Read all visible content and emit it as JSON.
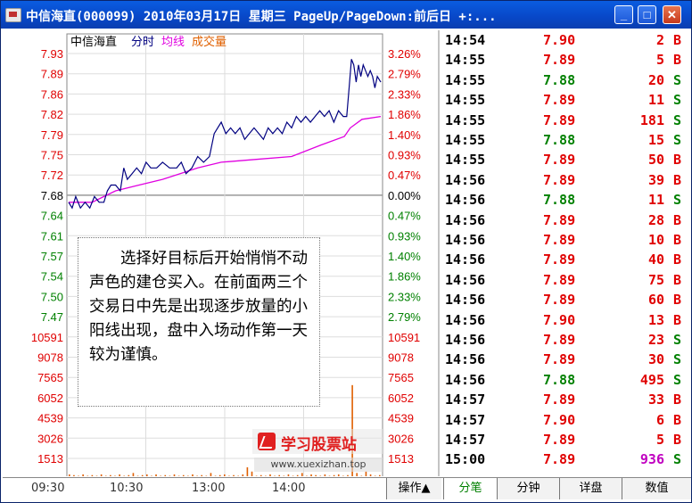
{
  "window": {
    "title": "中信海直(000099) 2010年03月17日 星期三 PageUp/PageDown:前后日 +:..."
  },
  "chart_data": {
    "type": "line",
    "stock_label": "中信海直",
    "legend": [
      "分时",
      "均线",
      "成交量"
    ],
    "legend_colors": [
      "#000080",
      "#e000e0",
      "#e06000"
    ],
    "price_ticks": [
      "7.93",
      "7.89",
      "7.86",
      "7.82",
      "7.79",
      "7.75",
      "7.72",
      "7.68",
      "7.64",
      "7.61",
      "7.57",
      "7.54",
      "7.50",
      "7.47"
    ],
    "pct_ticks": [
      "3.26%",
      "2.79%",
      "2.33%",
      "1.86%",
      "1.40%",
      "0.93%",
      "0.47%",
      "0.00%",
      "0.47%",
      "0.93%",
      "1.40%",
      "1.86%",
      "2.33%",
      "2.79%"
    ],
    "volume_ticks": [
      "10591",
      "9078",
      "7565",
      "6052",
      "4539",
      "3026",
      "1513"
    ],
    "time_ticks": [
      "09:30",
      "10:30",
      "13:00",
      "14:00"
    ],
    "ylim": [
      7.45,
      7.93
    ],
    "prev_close": 7.68,
    "price_series": [
      [
        0,
        7.67
      ],
      [
        3,
        7.66
      ],
      [
        6,
        7.68
      ],
      [
        10,
        7.66
      ],
      [
        14,
        7.67
      ],
      [
        18,
        7.66
      ],
      [
        22,
        7.68
      ],
      [
        26,
        7.67
      ],
      [
        30,
        7.67
      ],
      [
        33,
        7.69
      ],
      [
        36,
        7.7
      ],
      [
        40,
        7.7
      ],
      [
        44,
        7.69
      ],
      [
        47,
        7.73
      ],
      [
        50,
        7.71
      ],
      [
        54,
        7.72
      ],
      [
        58,
        7.73
      ],
      [
        62,
        7.72
      ],
      [
        66,
        7.74
      ],
      [
        70,
        7.73
      ],
      [
        75,
        7.73
      ],
      [
        80,
        7.74
      ],
      [
        86,
        7.73
      ],
      [
        92,
        7.73
      ],
      [
        96,
        7.74
      ],
      [
        100,
        7.72
      ],
      [
        105,
        7.73
      ],
      [
        110,
        7.75
      ],
      [
        115,
        7.74
      ],
      [
        120,
        7.75
      ],
      [
        124,
        7.79
      ],
      [
        127,
        7.8
      ],
      [
        130,
        7.81
      ],
      [
        134,
        7.79
      ],
      [
        138,
        7.8
      ],
      [
        142,
        7.79
      ],
      [
        146,
        7.8
      ],
      [
        150,
        7.78
      ],
      [
        154,
        7.79
      ],
      [
        158,
        7.8
      ],
      [
        162,
        7.79
      ],
      [
        166,
        7.78
      ],
      [
        170,
        7.8
      ],
      [
        174,
        7.79
      ],
      [
        178,
        7.8
      ],
      [
        182,
        7.79
      ],
      [
        186,
        7.81
      ],
      [
        190,
        7.8
      ],
      [
        194,
        7.82
      ],
      [
        198,
        7.81
      ],
      [
        202,
        7.82
      ],
      [
        206,
        7.81
      ],
      [
        210,
        7.82
      ],
      [
        214,
        7.83
      ],
      [
        218,
        7.82
      ],
      [
        222,
        7.83
      ],
      [
        226,
        7.81
      ],
      [
        230,
        7.83
      ],
      [
        234,
        7.82
      ],
      [
        237,
        7.82
      ],
      [
        239,
        7.87
      ],
      [
        241,
        7.92
      ],
      [
        243,
        7.91
      ],
      [
        245,
        7.88
      ],
      [
        247,
        7.91
      ],
      [
        249,
        7.89
      ],
      [
        251,
        7.91
      ],
      [
        253,
        7.9
      ],
      [
        255,
        7.89
      ],
      [
        257,
        7.9
      ],
      [
        259,
        7.89
      ],
      [
        261,
        7.87
      ],
      [
        263,
        7.89
      ],
      [
        266,
        7.88
      ]
    ],
    "avg_series": [
      [
        0,
        7.67
      ],
      [
        20,
        7.67
      ],
      [
        40,
        7.69
      ],
      [
        60,
        7.7
      ],
      [
        80,
        7.71
      ],
      [
        95,
        7.72
      ],
      [
        110,
        7.73
      ],
      [
        130,
        7.74
      ],
      [
        160,
        7.745
      ],
      [
        190,
        7.75
      ],
      [
        215,
        7.77
      ],
      [
        235,
        7.785
      ],
      [
        240,
        7.8
      ],
      [
        250,
        7.815
      ],
      [
        266,
        7.82
      ]
    ],
    "volume_series": [
      0.03,
      0.025,
      0.02,
      0.03,
      0.02,
      0.025,
      0.02,
      0.03,
      0.02,
      0.025,
      0.02,
      0.03,
      0.02,
      0.025,
      0.04,
      0.02,
      0.025,
      0.03,
      0.02,
      0.03,
      0.02,
      0.025,
      0.02,
      0.03,
      0.02,
      0.025,
      0.02,
      0.03,
      0.02,
      0.025,
      0.02,
      0.04,
      0.02,
      0.025,
      0.03,
      0.02,
      0.025,
      0.02,
      0.03,
      0.08,
      0.05,
      0.02,
      0.025,
      0.02,
      0.03,
      0.02,
      0.025,
      0.02,
      0.03,
      0.02,
      0.025,
      0.04,
      0.02,
      0.03,
      0.025,
      0.02,
      0.03,
      0.02,
      0.025,
      0.03,
      0.02,
      0.025,
      0.66,
      0.04,
      0.02,
      0.05,
      0.03,
      0.02,
      0.025
    ]
  },
  "annotation": {
    "text": "选择好目标后开始悄悄不动声色的建仓买入。在前面两三个交易日中先是出现逐步放量的小阳线出现，盘中入场动作第一天较为谨慎。"
  },
  "watermark": {
    "title": "学习股票站",
    "url": "www.xuexizhan.top"
  },
  "ticker": {
    "rows": [
      {
        "time": "14:54",
        "price": "7.90",
        "vol": "2",
        "bs": "B"
      },
      {
        "time": "14:55",
        "price": "7.89",
        "vol": "5",
        "bs": "B"
      },
      {
        "time": "14:55",
        "price": "7.88",
        "vol": "20",
        "bs": "S"
      },
      {
        "time": "14:55",
        "price": "7.89",
        "vol": "11",
        "bs": "S"
      },
      {
        "time": "14:55",
        "price": "7.89",
        "vol": "181",
        "bs": "S"
      },
      {
        "time": "14:55",
        "price": "7.88",
        "vol": "15",
        "bs": "S"
      },
      {
        "time": "14:55",
        "price": "7.89",
        "vol": "50",
        "bs": "B"
      },
      {
        "time": "14:56",
        "price": "7.89",
        "vol": "39",
        "bs": "B"
      },
      {
        "time": "14:56",
        "price": "7.88",
        "vol": "11",
        "bs": "S"
      },
      {
        "time": "14:56",
        "price": "7.89",
        "vol": "28",
        "bs": "B"
      },
      {
        "time": "14:56",
        "price": "7.89",
        "vol": "10",
        "bs": "B"
      },
      {
        "time": "14:56",
        "price": "7.89",
        "vol": "40",
        "bs": "B"
      },
      {
        "time": "14:56",
        "price": "7.89",
        "vol": "75",
        "bs": "B"
      },
      {
        "time": "14:56",
        "price": "7.89",
        "vol": "60",
        "bs": "B"
      },
      {
        "time": "14:56",
        "price": "7.90",
        "vol": "13",
        "bs": "B"
      },
      {
        "time": "14:56",
        "price": "7.89",
        "vol": "23",
        "bs": "S"
      },
      {
        "time": "14:56",
        "price": "7.89",
        "vol": "30",
        "bs": "S"
      },
      {
        "time": "14:56",
        "price": "7.88",
        "vol": "495",
        "bs": "S"
      },
      {
        "time": "14:57",
        "price": "7.89",
        "vol": "33",
        "bs": "B"
      },
      {
        "time": "14:57",
        "price": "7.90",
        "vol": "6",
        "bs": "B"
      },
      {
        "time": "14:57",
        "price": "7.89",
        "vol": "5",
        "bs": "B"
      },
      {
        "time": "15:00",
        "price": "7.89",
        "vol": "936",
        "bs": "S"
      }
    ]
  },
  "bottom": {
    "ops_label": "操作▲",
    "tabs": [
      "分笔",
      "分钟",
      "详盘",
      "数值"
    ]
  }
}
